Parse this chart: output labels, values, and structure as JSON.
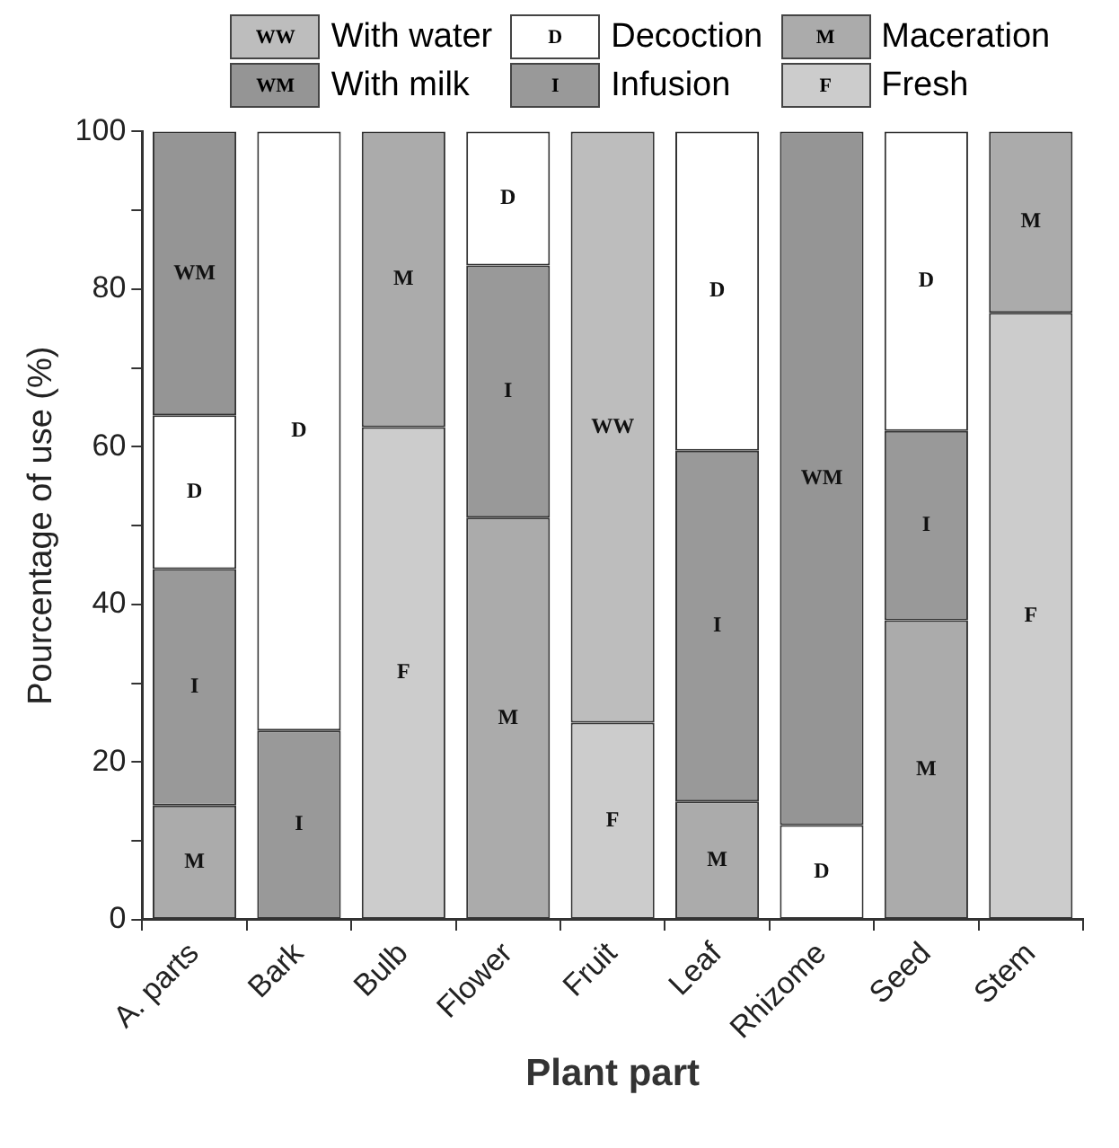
{
  "chart_data": {
    "type": "bar",
    "stacked": true,
    "xlabel": "Plant part",
    "ylabel": "Pourcentage of use (%)",
    "categories": [
      "A. parts",
      "Bark",
      "Bulb",
      "Flower",
      "Fruit",
      "Leaf",
      "Rhizome",
      "Seed",
      "Stem"
    ],
    "ylim": [
      0,
      100
    ],
    "yticks": [
      0,
      {
        "value": 10,
        "label": null
      },
      20,
      {
        "value": 30,
        "label": null
      },
      40,
      {
        "value": 50,
        "label": null
      },
      60,
      {
        "value": 70,
        "label": null
      },
      80,
      {
        "value": 90,
        "label": null
      },
      100
    ],
    "grid": false,
    "legend": "top",
    "series": [
      {
        "name": "Fresh",
        "color": "#cccccc",
        "values": [
          null,
          null,
          62.5,
          null,
          25,
          null,
          null,
          null,
          77
        ],
        "value_labels": [
          null,
          null,
          "F",
          null,
          "F",
          null,
          null,
          null,
          "F"
        ]
      },
      {
        "name": "Maceration",
        "color": "#ababab",
        "values": [
          14.5,
          null,
          37.5,
          51,
          null,
          15,
          null,
          38,
          23
        ],
        "value_labels": [
          "M",
          null,
          "M",
          "M",
          null,
          "M",
          null,
          "M",
          "M"
        ]
      },
      {
        "name": "Infusion",
        "color": "#999999",
        "values": [
          30,
          24,
          null,
          32,
          null,
          44.5,
          null,
          24,
          null
        ],
        "value_labels": [
          "I",
          "I",
          null,
          "I",
          null,
          "I",
          null,
          "I",
          null
        ]
      },
      {
        "name": "Decoction",
        "color": "#ffffff",
        "values": [
          19.5,
          76,
          null,
          17,
          null,
          40.5,
          12,
          38,
          null
        ],
        "value_labels": [
          "D",
          "D",
          null,
          "D",
          null,
          "D",
          "D",
          "D",
          null
        ]
      },
      {
        "name": "With milk",
        "color": "#959595",
        "values": [
          36,
          null,
          null,
          null,
          null,
          null,
          88,
          null,
          null
        ],
        "value_labels": [
          "WM",
          null,
          null,
          null,
          null,
          null,
          "WM",
          null,
          null
        ]
      },
      {
        "name": "With water",
        "color": "#bdbdbd",
        "values": [
          null,
          null,
          null,
          null,
          75,
          null,
          null,
          null,
          null
        ],
        "value_labels": [
          null,
          null,
          null,
          null,
          "WW",
          null,
          null,
          null,
          null
        ]
      }
    ]
  }
}
